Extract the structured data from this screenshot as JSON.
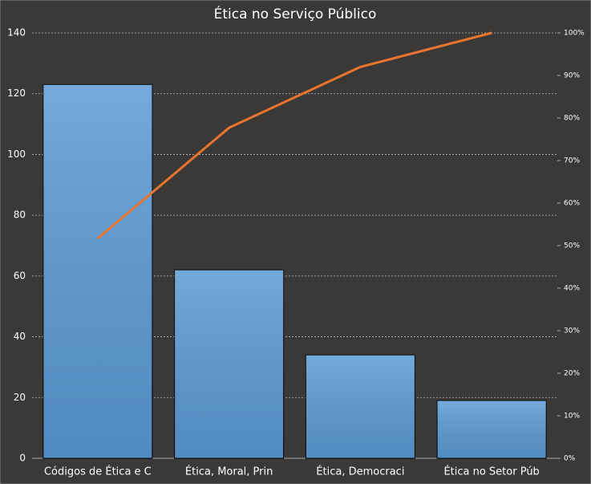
{
  "chart_data": {
    "type": "pareto",
    "title": "Ética no Serviço Público",
    "categories": [
      "Códigos de Ética e C",
      "Ética, Moral,  Prin",
      "Ética, Democraci",
      "Ética no Setor Púb"
    ],
    "series": [
      {
        "type": "bar",
        "color": "#5b9bd5",
        "values": [
          123,
          62,
          34,
          19
        ]
      },
      {
        "type": "line",
        "axis": "y2",
        "color": "#e8742e",
        "values": [
          51.7,
          77.7,
          92.0,
          100
        ]
      }
    ],
    "ylim": [
      0,
      140
    ],
    "yticks": [
      0,
      20,
      40,
      60,
      80,
      100,
      120,
      140
    ],
    "y2lim": [
      0,
      100
    ],
    "y2ticks": [
      {
        "value": 0,
        "label": "0%"
      },
      {
        "value": 10,
        "label": "10%"
      },
      {
        "value": 20,
        "label": "20%"
      },
      {
        "value": 30,
        "label": "30%"
      },
      {
        "value": 40,
        "label": "40%"
      },
      {
        "value": 50,
        "label": "50%"
      },
      {
        "value": 60,
        "label": "60%"
      },
      {
        "value": 70,
        "label": "70%"
      },
      {
        "value": 80,
        "label": "80%"
      },
      {
        "value": 90,
        "label": "90%"
      },
      {
        "value": 100,
        "label": "100%"
      }
    ],
    "grid": true
  }
}
